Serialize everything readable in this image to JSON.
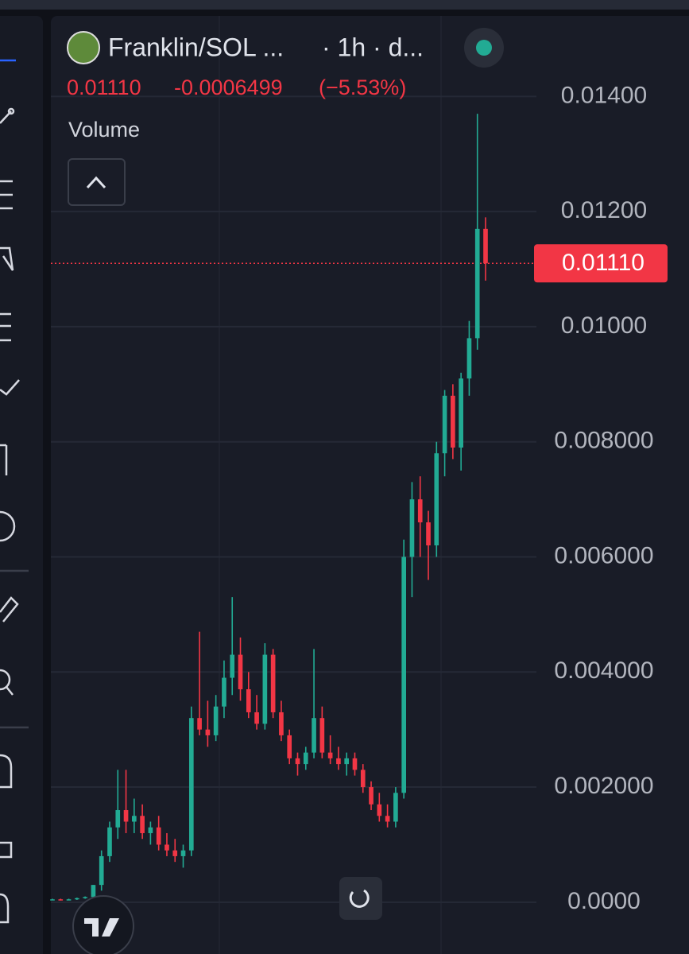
{
  "header": {
    "symbol": "Franklin/SOL ...",
    "interval": "· 1h · d...",
    "price": "0.01110",
    "change": "-0.0006499",
    "change_pct": "(−5.53%)",
    "indicator": "Volume"
  },
  "chart_data": {
    "type": "candlestick",
    "up_color": "#22ab94",
    "down_color": "#f23645",
    "open": [
      5e-05,
      5e-05,
      4e-05,
      5e-05,
      7e-05,
      9e-05,
      0.0003,
      0.0008,
      0.0013,
      0.0016,
      0.0014,
      0.0015,
      0.0012,
      0.0013,
      0.001,
      0.0009,
      0.0008,
      0.0009,
      0.0032,
      0.003,
      0.0029,
      0.0034,
      0.0039,
      0.0043,
      0.0037,
      0.0033,
      0.0031,
      0.0043,
      0.0033,
      0.0029,
      0.0025,
      0.0024,
      0.0026,
      0.0032,
      0.0026,
      0.0025,
      0.0024,
      0.0025,
      0.0023,
      0.002,
      0.0017,
      0.0015,
      0.0014,
      0.0019,
      0.006,
      0.007,
      0.0066,
      0.0062,
      0.0078,
      0.0088,
      0.0079,
      0.0091,
      0.0098,
      0.0117
    ],
    "high": [
      6e-05,
      6e-05,
      6e-05,
      8e-05,
      0.0001,
      0.0003,
      0.0009,
      0.0014,
      0.0023,
      0.0023,
      0.0018,
      0.0017,
      0.0014,
      0.0015,
      0.0012,
      0.0011,
      0.001,
      0.0034,
      0.0047,
      0.0035,
      0.0036,
      0.0042,
      0.0053,
      0.0046,
      0.004,
      0.0036,
      0.0045,
      0.0044,
      0.0035,
      0.003,
      0.0026,
      0.0027,
      0.0044,
      0.0034,
      0.0029,
      0.0027,
      0.0026,
      0.0026,
      0.0024,
      0.0021,
      0.0019,
      0.0017,
      0.002,
      0.0063,
      0.0073,
      0.0074,
      0.0068,
      0.008,
      0.0089,
      0.009,
      0.0092,
      0.0101,
      0.0137,
      0.0119
    ],
    "low": [
      4e-05,
      3e-05,
      4e-05,
      4e-05,
      6e-05,
      8e-05,
      0.0002,
      0.0007,
      0.0011,
      0.0012,
      0.0012,
      0.0011,
      0.001,
      0.0009,
      0.0008,
      0.0007,
      0.0006,
      0.0008,
      0.0029,
      0.0027,
      0.0028,
      0.0032,
      0.0036,
      0.0035,
      0.0032,
      0.003,
      0.003,
      0.0032,
      0.0028,
      0.0024,
      0.0022,
      0.0023,
      0.0025,
      0.0025,
      0.0024,
      0.0023,
      0.0022,
      0.0022,
      0.0019,
      0.0016,
      0.0014,
      0.0013,
      0.0013,
      0.0018,
      0.0053,
      0.006,
      0.0056,
      0.006,
      0.0074,
      0.0077,
      0.0075,
      0.0088,
      0.0096,
      0.0108
    ],
    "close": [
      5e-05,
      4e-05,
      5e-05,
      7e-05,
      9e-05,
      0.0003,
      0.0008,
      0.0013,
      0.0016,
      0.0014,
      0.0015,
      0.0012,
      0.0013,
      0.001,
      0.0009,
      0.0008,
      0.0009,
      0.0032,
      0.003,
      0.0029,
      0.0034,
      0.0039,
      0.0043,
      0.0037,
      0.0033,
      0.0031,
      0.0043,
      0.0033,
      0.0029,
      0.0025,
      0.0024,
      0.0026,
      0.0032,
      0.0026,
      0.0025,
      0.0024,
      0.0025,
      0.0023,
      0.002,
      0.0017,
      0.0015,
      0.0014,
      0.0019,
      0.006,
      0.007,
      0.0066,
      0.0062,
      0.0078,
      0.0088,
      0.0079,
      0.0091,
      0.0098,
      0.0117,
      0.0111
    ],
    "ylim": [
      -0.0009,
      0.0154
    ],
    "yticks": [
      {
        "value": 0,
        "label": "0.0000"
      },
      {
        "value": 0.002,
        "label": "0.002000"
      },
      {
        "value": 0.004,
        "label": "0.004000"
      },
      {
        "value": 0.006,
        "label": "0.006000"
      },
      {
        "value": 0.008,
        "label": "0.008000"
      },
      {
        "value": 0.01,
        "label": "0.01000"
      },
      {
        "value": 0.012,
        "label": "0.01200"
      },
      {
        "value": 0.014,
        "label": "0.01400"
      }
    ],
    "last_price": {
      "value": 0.0111,
      "label": "0.01110"
    },
    "grid": true
  }
}
